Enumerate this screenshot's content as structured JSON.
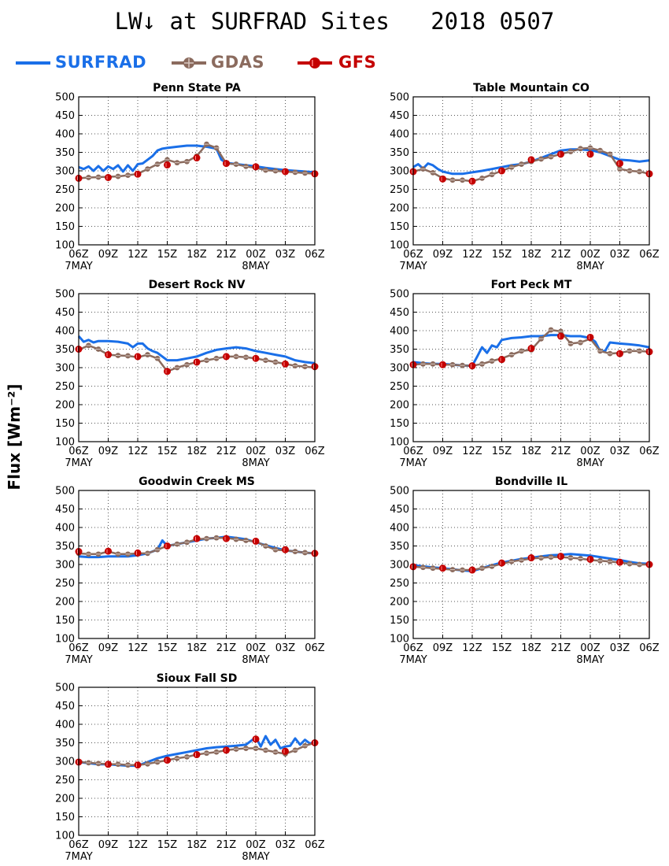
{
  "title": "LW↓ at SURFRAD Sites   2018 0507",
  "ylabel": "Flux [Wm⁻²]",
  "legend": [
    {
      "name": "SURFRAD",
      "color": "#1a6fe8",
      "marker": "none"
    },
    {
      "name": "GDAS",
      "color": "#8b6b5e",
      "marker": "circle-plus"
    },
    {
      "name": "GFS",
      "color": "#c40000",
      "marker": "filled-circle"
    }
  ],
  "axes": {
    "x_ticks": [
      "06Z",
      "09Z",
      "12Z",
      "15Z",
      "18Z",
      "21Z",
      "00Z",
      "03Z",
      "06Z"
    ],
    "x_tick_hours": [
      0,
      3,
      6,
      9,
      12,
      15,
      18,
      21,
      24
    ],
    "date_labels": [
      {
        "hour": 0,
        "text": "7MAY"
      },
      {
        "hour": 18,
        "text": "8MAY"
      }
    ],
    "ylim": [
      100,
      500
    ],
    "y_ticks": [
      100,
      150,
      200,
      250,
      300,
      350,
      400,
      450,
      500
    ],
    "grid": true,
    "x_unit": "hours since 06Z 7MAY"
  },
  "chart_data": [
    {
      "type": "line",
      "title": "Penn State PA",
      "series": [
        {
          "name": "SURFRAD",
          "x": [
            0,
            0.5,
            1,
            1.5,
            2,
            2.5,
            3,
            3.5,
            4,
            4.5,
            5,
            5.5,
            6,
            6.5,
            7,
            7.5,
            8,
            8.5,
            9,
            10,
            11,
            12,
            13,
            14,
            14.5,
            15,
            15.5,
            16,
            17,
            18,
            19,
            20,
            21,
            22,
            23,
            24
          ],
          "y": [
            310,
            305,
            312,
            300,
            313,
            300,
            312,
            305,
            315,
            298,
            315,
            300,
            318,
            320,
            330,
            340,
            355,
            360,
            362,
            365,
            368,
            368,
            365,
            360,
            330,
            322,
            320,
            318,
            315,
            312,
            308,
            305,
            302,
            300,
            298,
            296
          ]
        },
        {
          "name": "GDAS",
          "x": [
            0,
            1,
            2,
            3,
            4,
            5,
            6,
            7,
            8,
            9,
            10,
            11,
            12,
            13,
            14,
            15,
            16,
            17,
            18,
            19,
            20,
            21,
            22,
            23,
            24
          ],
          "y": [
            280,
            282,
            283,
            284,
            285,
            288,
            292,
            305,
            318,
            330,
            322,
            325,
            340,
            372,
            362,
            320,
            318,
            312,
            308,
            302,
            300,
            298,
            296,
            294,
            292
          ]
        },
        {
          "name": "GFS",
          "x": [
            0,
            3,
            6,
            9,
            12,
            15,
            18,
            21,
            24
          ],
          "y": [
            280,
            282,
            291,
            316,
            335,
            320,
            311,
            298,
            292
          ]
        }
      ]
    },
    {
      "type": "line",
      "title": "Table Mountain CO",
      "series": [
        {
          "name": "SURFRAD",
          "x": [
            0,
            0.5,
            1,
            1.5,
            2,
            2.5,
            3,
            3.5,
            4,
            5,
            6,
            7,
            8,
            9,
            10,
            11,
            12,
            13,
            14,
            15,
            16,
            17,
            18,
            19,
            20,
            21,
            22,
            23,
            24
          ],
          "y": [
            310,
            318,
            306,
            320,
            315,
            305,
            298,
            295,
            292,
            292,
            296,
            300,
            305,
            310,
            315,
            318,
            325,
            335,
            345,
            355,
            358,
            358,
            356,
            350,
            340,
            330,
            328,
            325,
            328
          ]
        },
        {
          "name": "GDAS",
          "x": [
            0,
            1,
            2,
            3,
            4,
            5,
            6,
            7,
            8,
            9,
            10,
            11,
            12,
            13,
            14,
            15,
            16,
            17,
            18,
            19,
            20,
            21,
            22,
            23,
            24
          ],
          "y": [
            298,
            305,
            295,
            280,
            275,
            275,
            272,
            280,
            290,
            300,
            310,
            318,
            325,
            332,
            338,
            345,
            352,
            360,
            362,
            355,
            345,
            305,
            300,
            298,
            292
          ]
        },
        {
          "name": "GFS",
          "x": [
            0,
            3,
            6,
            9,
            12,
            15,
            18,
            21,
            24
          ],
          "y": [
            298,
            278,
            272,
            300,
            330,
            345,
            345,
            320,
            292
          ]
        }
      ]
    },
    {
      "type": "line",
      "title": "Desert Rock NV",
      "series": [
        {
          "name": "SURFRAD",
          "x": [
            0,
            0.5,
            1,
            1.5,
            2,
            3,
            4,
            5,
            5.5,
            6,
            6.5,
            7,
            7.5,
            8,
            8.5,
            9,
            10,
            11,
            12,
            13,
            14,
            15,
            16,
            17,
            18,
            19,
            20,
            21,
            22,
            23,
            24
          ],
          "y": [
            385,
            370,
            375,
            368,
            372,
            372,
            370,
            365,
            355,
            365,
            365,
            352,
            345,
            340,
            330,
            320,
            320,
            325,
            330,
            340,
            348,
            352,
            355,
            352,
            345,
            340,
            335,
            330,
            320,
            315,
            312
          ]
        },
        {
          "name": "GDAS",
          "x": [
            0,
            1,
            2,
            3,
            4,
            5,
            6,
            7,
            8,
            9,
            10,
            11,
            12,
            13,
            14,
            15,
            16,
            17,
            18,
            19,
            20,
            21,
            22,
            23,
            24
          ],
          "y": [
            348,
            360,
            350,
            335,
            333,
            332,
            328,
            335,
            325,
            290,
            300,
            308,
            315,
            320,
            325,
            330,
            330,
            328,
            325,
            320,
            315,
            310,
            305,
            303,
            300
          ]
        },
        {
          "name": "GFS",
          "x": [
            0,
            3,
            6,
            9,
            12,
            15,
            18,
            21,
            24
          ],
          "y": [
            350,
            335,
            330,
            290,
            315,
            330,
            325,
            310,
            303
          ]
        }
      ]
    },
    {
      "type": "line",
      "title": "Fort Peck MT",
      "series": [
        {
          "name": "SURFRAD",
          "x": [
            0,
            1,
            2,
            3,
            4,
            5,
            6,
            6.5,
            7,
            7.5,
            8,
            8.5,
            9,
            10,
            11,
            12,
            13,
            14,
            15,
            16,
            17,
            18,
            18.5,
            19,
            19.5,
            20,
            21,
            22,
            23,
            24
          ],
          "y": [
            315,
            312,
            310,
            310,
            308,
            306,
            305,
            330,
            355,
            340,
            360,
            355,
            375,
            380,
            382,
            385,
            385,
            388,
            388,
            385,
            385,
            380,
            370,
            345,
            345,
            368,
            365,
            363,
            360,
            355
          ]
        },
        {
          "name": "GDAS",
          "x": [
            0,
            1,
            2,
            3,
            4,
            5,
            6,
            7,
            8,
            9,
            10,
            11,
            12,
            13,
            14,
            15,
            16,
            17,
            18,
            19,
            20,
            21,
            22,
            23,
            24
          ],
          "y": [
            308,
            310,
            310,
            308,
            308,
            306,
            305,
            310,
            318,
            325,
            335,
            345,
            348,
            378,
            402,
            398,
            365,
            368,
            378,
            345,
            338,
            340,
            345,
            345,
            343
          ]
        },
        {
          "name": "GFS",
          "x": [
            0,
            3,
            6,
            9,
            12,
            15,
            18,
            21,
            24
          ],
          "y": [
            308,
            308,
            305,
            322,
            352,
            385,
            382,
            338,
            343
          ]
        }
      ]
    },
    {
      "type": "line",
      "title": "Goodwin Creek MS",
      "series": [
        {
          "name": "SURFRAD",
          "x": [
            0,
            1,
            2,
            3,
            4,
            5,
            6,
            7,
            8,
            8.5,
            9,
            10,
            11,
            12,
            13,
            14,
            15,
            16,
            17,
            18,
            19,
            20,
            21,
            22,
            23,
            24
          ],
          "y": [
            322,
            320,
            320,
            322,
            322,
            322,
            325,
            330,
            340,
            365,
            350,
            355,
            360,
            365,
            370,
            372,
            375,
            372,
            368,
            360,
            352,
            345,
            338,
            335,
            332,
            330
          ]
        },
        {
          "name": "GDAS",
          "x": [
            0,
            1,
            2,
            3,
            4,
            5,
            6,
            7,
            8,
            9,
            10,
            11,
            12,
            13,
            14,
            15,
            16,
            17,
            18,
            19,
            20,
            21,
            22,
            23,
            24
          ],
          "y": [
            330,
            328,
            328,
            335,
            328,
            328,
            330,
            330,
            340,
            350,
            355,
            360,
            368,
            370,
            372,
            372,
            368,
            365,
            362,
            350,
            340,
            338,
            335,
            332,
            330
          ]
        },
        {
          "name": "GFS",
          "x": [
            0,
            3,
            6,
            9,
            12,
            15,
            18,
            21,
            24
          ],
          "y": [
            335,
            336,
            331,
            350,
            370,
            370,
            363,
            340,
            330
          ]
        }
      ]
    },
    {
      "type": "line",
      "title": "Bondville IL",
      "series": [
        {
          "name": "SURFRAD",
          "x": [
            0,
            1,
            2,
            3,
            4,
            5,
            6,
            7,
            8,
            9,
            10,
            11,
            12,
            13,
            14,
            15,
            16,
            17,
            18,
            19,
            20,
            21,
            22,
            23,
            24
          ],
          "y": [
            298,
            295,
            292,
            290,
            287,
            284,
            282,
            290,
            298,
            305,
            310,
            315,
            318,
            322,
            325,
            326,
            328,
            326,
            324,
            320,
            316,
            312,
            307,
            303,
            302
          ]
        },
        {
          "name": "GDAS",
          "x": [
            0,
            1,
            2,
            3,
            4,
            5,
            6,
            7,
            8,
            9,
            10,
            11,
            12,
            13,
            14,
            15,
            16,
            17,
            18,
            19,
            20,
            21,
            22,
            23,
            24
          ],
          "y": [
            294,
            292,
            290,
            288,
            286,
            285,
            285,
            290,
            295,
            302,
            308,
            312,
            316,
            318,
            320,
            320,
            318,
            316,
            312,
            310,
            308,
            305,
            302,
            300,
            300
          ]
        },
        {
          "name": "GFS",
          "x": [
            0,
            3,
            6,
            9,
            12,
            15,
            18,
            21,
            24
          ],
          "y": [
            294,
            290,
            285,
            304,
            318,
            322,
            314,
            306,
            300
          ]
        }
      ]
    },
    {
      "type": "line",
      "title": "Sioux Fall SD",
      "series": [
        {
          "name": "SURFRAD",
          "x": [
            0,
            1,
            2,
            3,
            4,
            5,
            6,
            7,
            8,
            9,
            10,
            11,
            12,
            13,
            14,
            15,
            16,
            17,
            18,
            18.5,
            19,
            19.5,
            20,
            20.5,
            21,
            21.5,
            22,
            22.5,
            23,
            23.5,
            24
          ],
          "y": [
            298,
            295,
            292,
            292,
            290,
            288,
            288,
            298,
            308,
            315,
            320,
            325,
            330,
            335,
            338,
            340,
            342,
            345,
            365,
            340,
            368,
            345,
            358,
            335,
            340,
            342,
            362,
            345,
            358,
            348,
            352
          ]
        },
        {
          "name": "GDAS",
          "x": [
            0,
            1,
            2,
            3,
            4,
            5,
            6,
            7,
            8,
            9,
            10,
            11,
            12,
            13,
            14,
            15,
            16,
            17,
            18,
            19,
            20,
            21,
            22,
            23,
            24
          ],
          "y": [
            298,
            296,
            294,
            292,
            292,
            290,
            290,
            293,
            298,
            303,
            308,
            312,
            318,
            322,
            325,
            330,
            333,
            335,
            335,
            330,
            325,
            320,
            330,
            342,
            350
          ]
        },
        {
          "name": "GFS",
          "x": [
            0,
            3,
            6,
            9,
            12,
            15,
            18,
            21,
            24
          ],
          "y": [
            298,
            292,
            290,
            303,
            318,
            330,
            360,
            327,
            350
          ]
        }
      ]
    }
  ]
}
